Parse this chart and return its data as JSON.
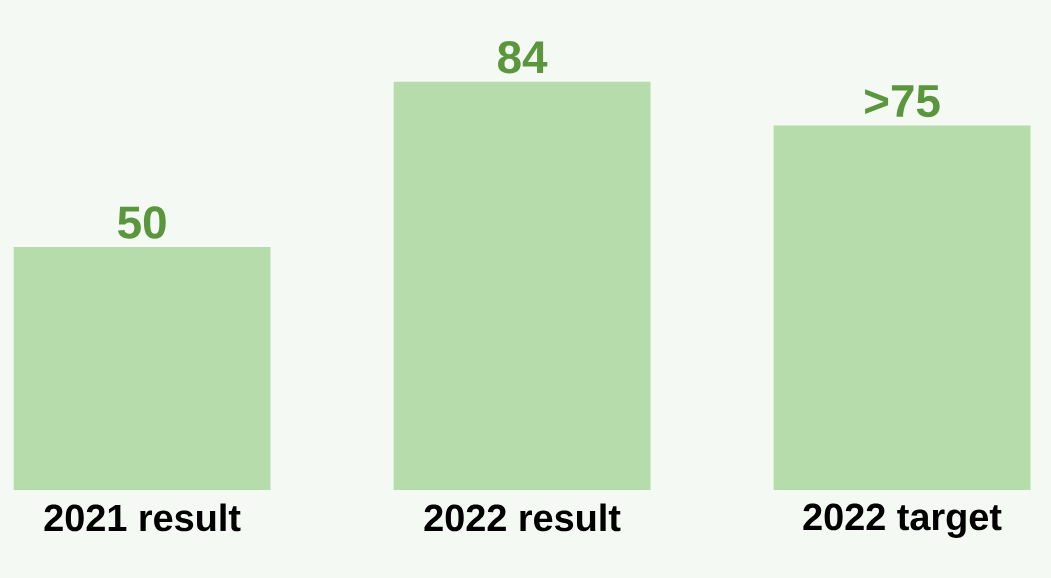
{
  "chart_data": {
    "type": "bar",
    "categories": [
      "2021 result",
      "2022 result",
      "2022 target"
    ],
    "values": [
      50,
      84,
      75
    ],
    "value_labels": [
      "50",
      "84",
      ">75"
    ],
    "colors": [
      "#b5dcaa",
      "#b5dcaa",
      "#b5dcaa"
    ]
  }
}
